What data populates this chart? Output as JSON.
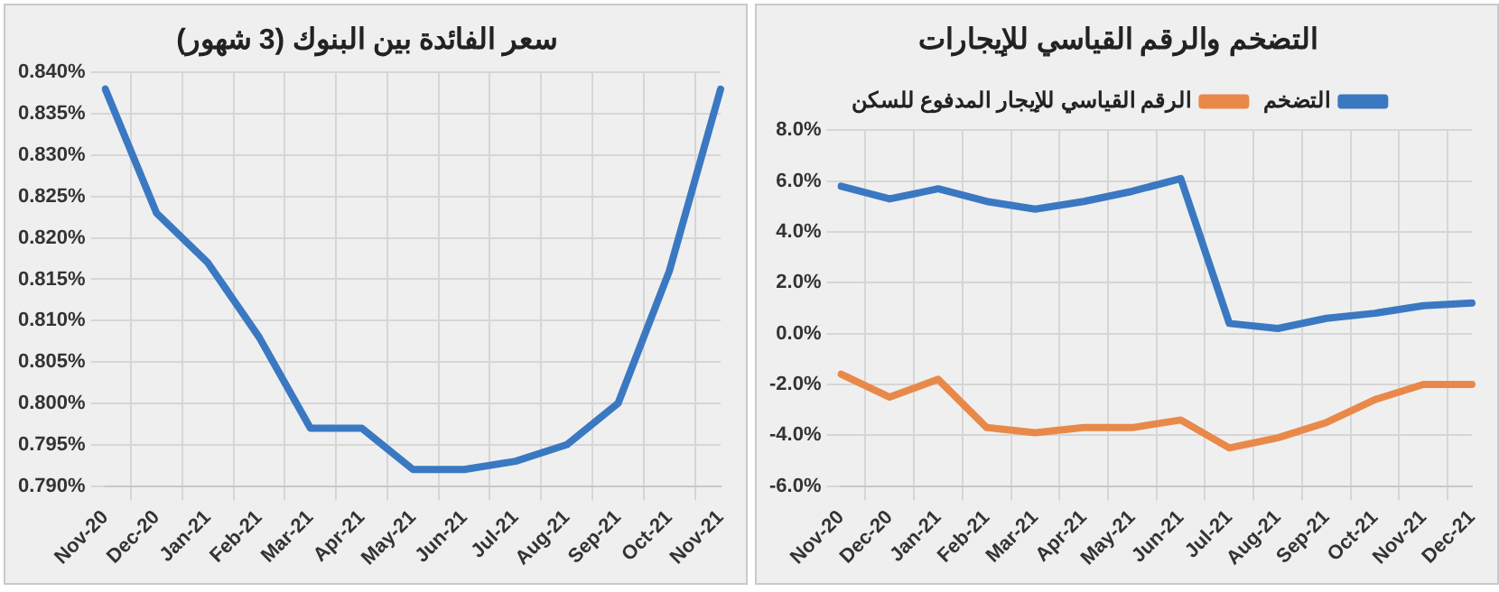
{
  "chart_data": [
    {
      "type": "line",
      "title": "سعر الفائدة بين البنوك (3 شهور)",
      "categories": [
        "Nov-20",
        "Dec-20",
        "Jan-21",
        "Feb-21",
        "Mar-21",
        "Apr-21",
        "May-21",
        "Jun-21",
        "Jul-21",
        "Aug-21",
        "Sep-21",
        "Oct-21",
        "Nov-21"
      ],
      "series": [
        {
          "color": "#3b78c2",
          "values": [
            0.838,
            0.823,
            0.817,
            0.808,
            0.797,
            0.797,
            0.792,
            0.792,
            0.793,
            0.795,
            0.8,
            0.816,
            0.838
          ]
        }
      ],
      "ylim": [
        0.79,
        0.84
      ],
      "yticks": [
        {
          "value": 0.79,
          "label": "0.790%"
        },
        {
          "value": 0.795,
          "label": "0.795%"
        },
        {
          "value": 0.8,
          "label": "0.800%"
        },
        {
          "value": 0.805,
          "label": "0.805%"
        },
        {
          "value": 0.81,
          "label": "0.810%"
        },
        {
          "value": 0.815,
          "label": "0.815%"
        },
        {
          "value": 0.82,
          "label": "0.820%"
        },
        {
          "value": 0.825,
          "label": "0.825%"
        },
        {
          "value": 0.83,
          "label": "0.830%"
        },
        {
          "value": 0.835,
          "label": "0.835%"
        },
        {
          "value": 0.84,
          "label": "0.840%"
        }
      ],
      "grid": true,
      "legend": false,
      "marker": "none",
      "line_style": "solid"
    },
    {
      "type": "line",
      "title": "التضخم والرقم القياسي للإيجارات",
      "categories": [
        "Nov-20",
        "Dec-20",
        "Jan-21",
        "Feb-21",
        "Mar-21",
        "Apr-21",
        "May-21",
        "Jun-21",
        "Jul-21",
        "Aug-21",
        "Sep-21",
        "Oct-21",
        "Nov-21",
        "Dec-21"
      ],
      "series": [
        {
          "name": "التضخم",
          "color": "#3b78c2",
          "values": [
            5.8,
            5.3,
            5.7,
            5.2,
            4.9,
            5.2,
            5.6,
            6.1,
            0.4,
            0.2,
            0.6,
            0.8,
            1.1,
            1.2
          ]
        },
        {
          "name": "الرقم القياسي للإيجار المدفوع للسكن",
          "color": "#e8894a",
          "values": [
            -1.6,
            -2.5,
            -1.8,
            -3.7,
            -3.9,
            -3.7,
            -3.7,
            -3.4,
            -4.5,
            -4.1,
            -3.5,
            -2.6,
            -2.0,
            -2.0
          ]
        }
      ],
      "ylim": [
        -6,
        8
      ],
      "yticks": [
        {
          "value": -6,
          "label": "-6.0%"
        },
        {
          "value": -4,
          "label": "-4.0%"
        },
        {
          "value": -2,
          "label": "-2.0%"
        },
        {
          "value": 0,
          "label": "0.0%"
        },
        {
          "value": 2,
          "label": "2.0%"
        },
        {
          "value": 4,
          "label": "4.0%"
        },
        {
          "value": 6,
          "label": "6.0%"
        },
        {
          "value": 8,
          "label": "8.0%"
        }
      ],
      "grid": true,
      "legend": "top",
      "marker": "none",
      "line_style": "solid"
    }
  ]
}
